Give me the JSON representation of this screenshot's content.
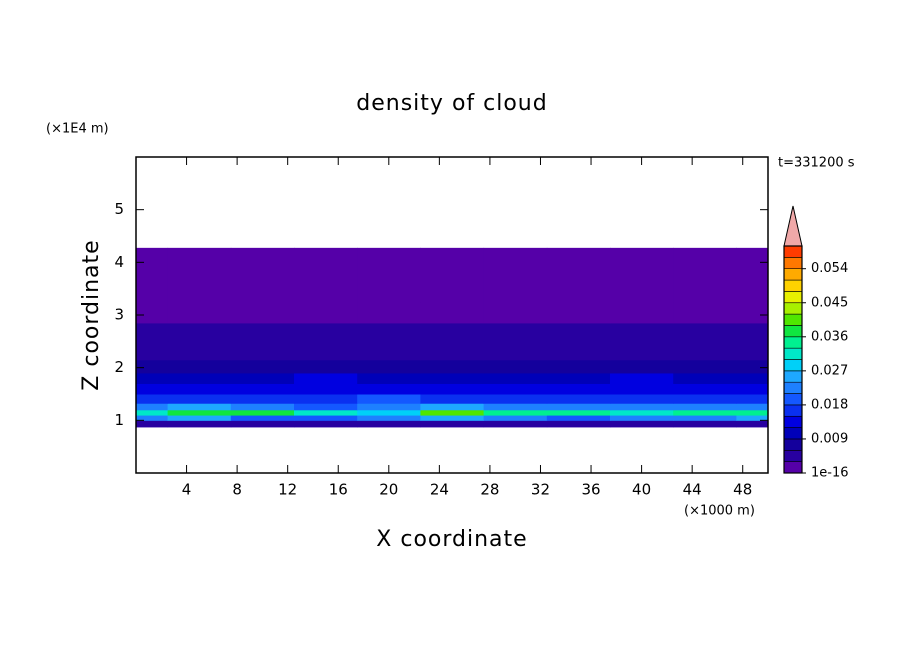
{
  "chart_data": {
    "type": "contour",
    "title": "density of cloud",
    "x_label": "X coordinate",
    "y_label": "Z coordinate",
    "x_unit": "(×1000 m)",
    "y_unit": "(×1E4 m)",
    "annotation": "t=331200 s",
    "xlim": [
      0,
      50
    ],
    "ylim": [
      0,
      6
    ],
    "xticks": [
      4,
      8,
      12,
      16,
      20,
      24,
      28,
      32,
      36,
      40,
      44,
      48
    ],
    "yticks": [
      1,
      2,
      3,
      4,
      5
    ],
    "x": [
      0,
      5,
      10,
      15,
      20,
      25,
      30,
      35,
      40,
      45,
      50
    ],
    "y": [
      0.8,
      0.95,
      1.05,
      1.15,
      1.25,
      1.4,
      1.6,
      1.8,
      2.0,
      2.3,
      2.7,
      3.0,
      3.5,
      4.0,
      4.55
    ],
    "z": [
      [
        0,
        0,
        0,
        0,
        0,
        0,
        0,
        0,
        0,
        0,
        0
      ],
      [
        0.004,
        0.005,
        0.004,
        0.005,
        0.004,
        0.003,
        0.004,
        0.005,
        0.004,
        0.005,
        0.004
      ],
      [
        0.021,
        0.024,
        0.02,
        0.019,
        0.022,
        0.024,
        0.021,
        0.02,
        0.023,
        0.022,
        0.024
      ],
      [
        0.032,
        0.038,
        0.036,
        0.03,
        0.029,
        0.04,
        0.033,
        0.035,
        0.031,
        0.034,
        0.033
      ],
      [
        0.022,
        0.025,
        0.023,
        0.02,
        0.021,
        0.024,
        0.022,
        0.023,
        0.021,
        0.022,
        0.023
      ],
      [
        0.016,
        0.017,
        0.015,
        0.016,
        0.018,
        0.016,
        0.015,
        0.017,
        0.016,
        0.015,
        0.016
      ],
      [
        0.013,
        0.012,
        0.014,
        0.013,
        0.012,
        0.013,
        0.014,
        0.012,
        0.013,
        0.014,
        0.012
      ],
      [
        0.011,
        0.01,
        0.011,
        0.012,
        0.01,
        0.011,
        0.01,
        0.011,
        0.012,
        0.01,
        0.011
      ],
      [
        0.007,
        0.008,
        0.007,
        0.006,
        0.007,
        0.008,
        0.007,
        0.006,
        0.007,
        0.008,
        0.007
      ],
      [
        0.005,
        0.004,
        0.005,
        0.005,
        0.004,
        0.005,
        0.004,
        0.005,
        0.005,
        0.004,
        0.005
      ],
      [
        0.003,
        0.0035,
        0.003,
        0.0032,
        0.003,
        0.0034,
        0.003,
        0.0031,
        0.003,
        0.0033,
        0.003
      ],
      [
        0.002,
        0.002,
        0.002,
        0.002,
        0.002,
        0.002,
        0.002,
        0.002,
        0.002,
        0.002,
        0.002
      ],
      [
        0.001,
        0.001,
        0.001,
        0.001,
        0.001,
        0.001,
        0.001,
        0.001,
        0.001,
        0.001,
        0.001
      ],
      [
        0.001,
        0.001,
        0.001,
        0.001,
        0.001,
        0.001,
        0.001,
        0.001,
        0.001,
        0.001,
        0.001
      ],
      [
        0,
        0,
        0,
        0,
        0,
        0,
        0,
        0,
        0,
        0,
        0
      ]
    ],
    "levels": [
      1e-16,
      0.003,
      0.006,
      0.009,
      0.012,
      0.015,
      0.018,
      0.021,
      0.024,
      0.027,
      0.03,
      0.033,
      0.036,
      0.039,
      0.042,
      0.045,
      0.048,
      0.051,
      0.054,
      0.057,
      0.06
    ],
    "colors": [
      "#5500a8",
      "#2800a0",
      "#14009c",
      "#0000b8",
      "#0000e0",
      "#0a30f0",
      "#1458ff",
      "#1e80ff",
      "#1ea8ff",
      "#00d0f8",
      "#00e8c8",
      "#00f090",
      "#10e640",
      "#50e600",
      "#a8f000",
      "#e8f000",
      "#ffd200",
      "#ffaa00",
      "#ff7800",
      "#ff3c00"
    ],
    "extend_color": "#f0a8a8",
    "cbar_ticks": [
      1e-16,
      0.009,
      0.018,
      0.027,
      0.036,
      0.045,
      0.054
    ]
  }
}
